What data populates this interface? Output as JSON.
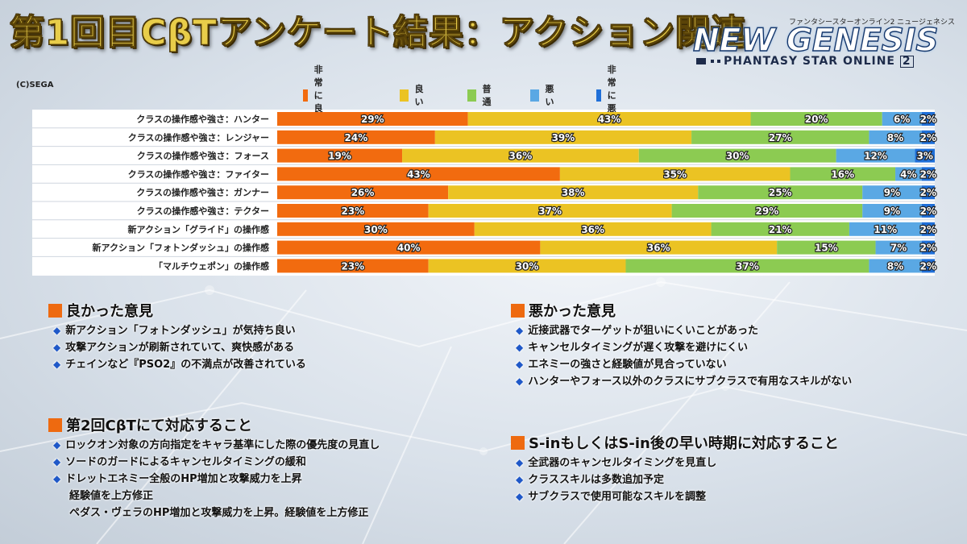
{
  "title": "第1回目CβTアンケート結果：アクション関連",
  "copyright": "(C)SEGA",
  "logo": {
    "subtitle": "ファンタシースターオンライン2 ニュージェネシス",
    "main": "NEW GENESIS",
    "series": "PHANTASY STAR ONLINE",
    "num": "2"
  },
  "chart_data": {
    "type": "bar",
    "orientation": "horizontal",
    "stacked": true,
    "unit": "%",
    "legend_position": "top",
    "categories": [
      "クラスの操作感や強さ：ハンター",
      "クラスの操作感や強さ：レンジャー",
      "クラスの操作感や強さ：フォース",
      "クラスの操作感や強さ：ファイター",
      "クラスの操作感や強さ：ガンナー",
      "クラスの操作感や強さ：テクター",
      "新アクション「グライド」の操作感",
      "新アクション「フォトンダッシュ」の操作感",
      "「マルチウェポン」の操作感"
    ],
    "series": [
      {
        "name": "非常に良い",
        "color": "#f26b0f",
        "values": [
          29,
          24,
          19,
          43,
          26,
          23,
          30,
          40,
          23
        ]
      },
      {
        "name": "良い",
        "color": "#ebc323",
        "values": [
          43,
          39,
          36,
          35,
          38,
          37,
          36,
          36,
          30
        ]
      },
      {
        "name": "普通",
        "color": "#8ccb52",
        "values": [
          20,
          27,
          30,
          16,
          25,
          29,
          21,
          15,
          37
        ]
      },
      {
        "name": "悪い",
        "color": "#5aa8e4",
        "values": [
          6,
          8,
          12,
          4,
          9,
          9,
          11,
          7,
          8
        ]
      },
      {
        "name": "非常に悪い",
        "color": "#1f6fd8",
        "values": [
          2,
          2,
          3,
          2,
          2,
          2,
          2,
          2,
          2
        ]
      }
    ]
  },
  "sections": {
    "good": {
      "heading": "良かった意見",
      "items": [
        "新アクション「フォトンダッシュ」が気持ち良い",
        "攻撃アクションが刷新されていて、爽快感がある",
        "チェインなど『PSO2』の不満点が改善されている"
      ]
    },
    "bad": {
      "heading": "悪かった意見",
      "items": [
        "近接武器でターゲットが狙いにくいことがあった",
        "キャンセルタイミングが遅く攻撃を避けにくい",
        "エネミーの強さと経験値が見合っていない",
        "ハンターやフォース以外のクラスにサブクラスで有用なスキルがない"
      ]
    },
    "cbt2": {
      "heading": "第2回CβTにて対応すること",
      "items": [
        "ロックオン対象の方向指定をキャラ基準にした際の優先度の見直し",
        "ソードのガードによるキャンセルタイミングの緩和",
        "ドレットエネミー全般のHP増加と攻撃威力を上昇"
      ],
      "continuation": [
        "経験値を上方修正",
        "ペダス・ヴェラのHP増加と攻撃威力を上昇。経験値を上方修正"
      ]
    },
    "sin": {
      "heading": "S-inもしくはS-in後の早い時期に対応すること",
      "items": [
        "全武器のキャンセルタイミングを見直し",
        "クラススキルは多数追加予定",
        "サブクラスで使用可能なスキルを調整"
      ]
    }
  }
}
